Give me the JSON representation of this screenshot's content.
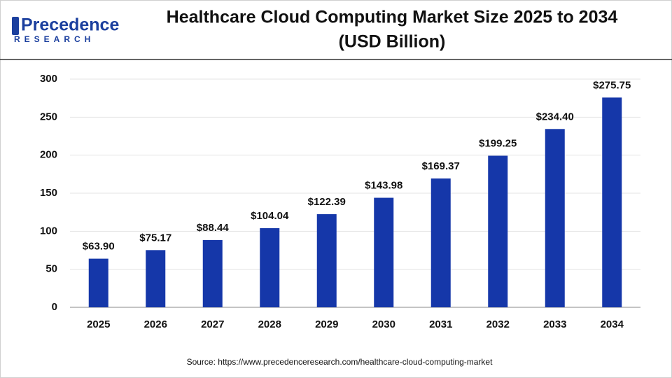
{
  "logo": {
    "name": "Precedence",
    "tagline": "RESEARCH"
  },
  "chart_data": {
    "type": "bar",
    "title": "Healthcare Cloud Computing Market Size 2025 to 2034",
    "subtitle": "(USD Billion)",
    "categories": [
      "2025",
      "2026",
      "2027",
      "2028",
      "2029",
      "2030",
      "2031",
      "2032",
      "2033",
      "2034"
    ],
    "values": [
      63.9,
      75.17,
      88.44,
      104.04,
      122.39,
      143.98,
      169.37,
      199.25,
      234.4,
      275.75
    ],
    "value_labels": [
      "$63.90",
      "$75.17",
      "$88.44",
      "$104.04",
      "$122.39",
      "$143.98",
      "$169.37",
      "$199.25",
      "$234.40",
      "$275.75"
    ],
    "color": "#1537a9",
    "ylim": [
      0,
      300
    ],
    "yticks": [
      0,
      50,
      100,
      150,
      200,
      250,
      300
    ],
    "grid": true,
    "source": "Source: https://www.precedenceresearch.com/healthcare-cloud-computing-market"
  }
}
